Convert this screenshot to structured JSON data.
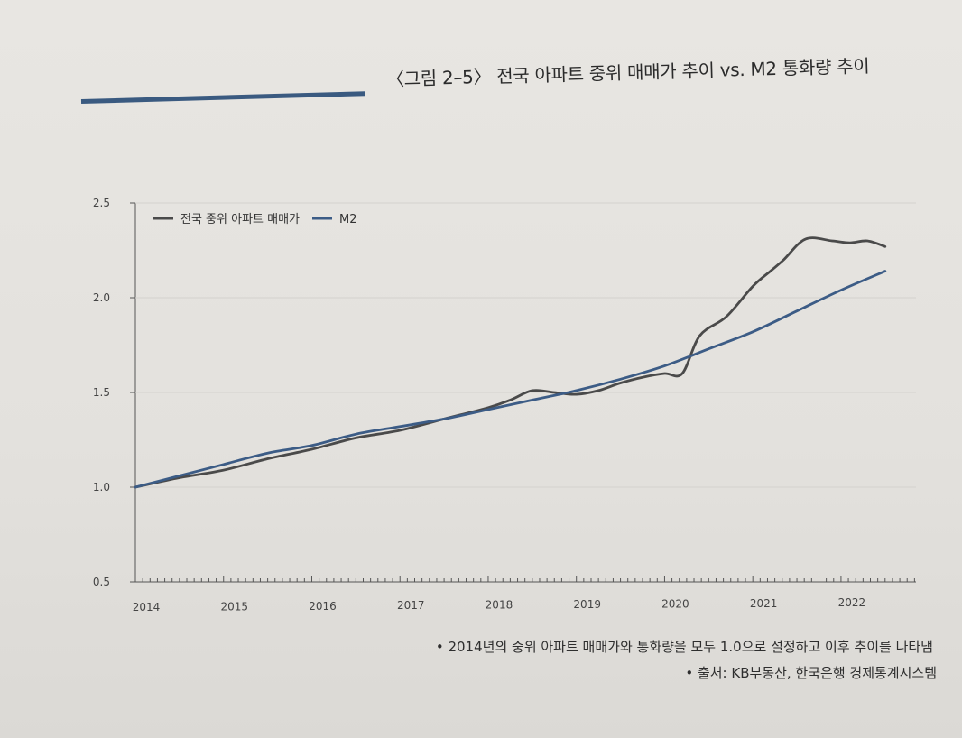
{
  "title": "〈그림 2–5〉 전국 아파트 중위 매매가 추이 vs. M2 통화량 추이",
  "notes": [
    "• 2014년의 중위 아파트 매매가와 통화량을 모두 1.0으로 설정하고 이후 추이를 나타냄",
    "• 출처: KB부동산, 한국은행 경제통계시스템"
  ],
  "colors": {
    "accent_rule": "#3a5a80",
    "apt": "#4a4a4a",
    "m2": "#3c5c86"
  },
  "chart_data": {
    "type": "line",
    "title": "",
    "xlabel": "",
    "ylabel": "",
    "ylim": [
      0.5,
      2.5
    ],
    "xlim": [
      2014,
      2022.85
    ],
    "yticks": [
      "0.5",
      "1.0",
      "1.5",
      "2.0",
      "2.5"
    ],
    "xticks": [
      "2014",
      "2015",
      "2016",
      "2017",
      "2018",
      "2019",
      "2020",
      "2021",
      "2022"
    ],
    "legend_position": "top-left",
    "series": [
      {
        "name": "전국 중위 아파트 매매가",
        "color": "#4a4a4a",
        "x": [
          2014.0,
          2014.5,
          2015.0,
          2015.5,
          2016.0,
          2016.5,
          2017.0,
          2017.5,
          2018.0,
          2018.25,
          2018.5,
          2018.75,
          2019.0,
          2019.25,
          2019.5,
          2019.75,
          2020.0,
          2020.2,
          2020.4,
          2020.7,
          2021.0,
          2021.2,
          2021.35,
          2021.6,
          2021.9,
          2022.1,
          2022.3,
          2022.5
        ],
        "values": [
          1.0,
          1.05,
          1.09,
          1.15,
          1.2,
          1.26,
          1.3,
          1.36,
          1.42,
          1.46,
          1.51,
          1.5,
          1.49,
          1.51,
          1.55,
          1.58,
          1.6,
          1.6,
          1.8,
          1.9,
          2.06,
          2.14,
          2.2,
          2.31,
          2.3,
          2.29,
          2.3,
          2.27
        ]
      },
      {
        "name": "M2",
        "color": "#3c5c86",
        "x": [
          2014.0,
          2014.5,
          2015.0,
          2015.5,
          2016.0,
          2016.5,
          2017.0,
          2017.5,
          2018.0,
          2018.5,
          2019.0,
          2019.5,
          2020.0,
          2020.5,
          2021.0,
          2021.5,
          2022.0,
          2022.5
        ],
        "values": [
          1.0,
          1.06,
          1.12,
          1.18,
          1.22,
          1.28,
          1.32,
          1.36,
          1.41,
          1.46,
          1.51,
          1.57,
          1.64,
          1.73,
          1.82,
          1.93,
          2.04,
          2.14
        ]
      }
    ]
  }
}
